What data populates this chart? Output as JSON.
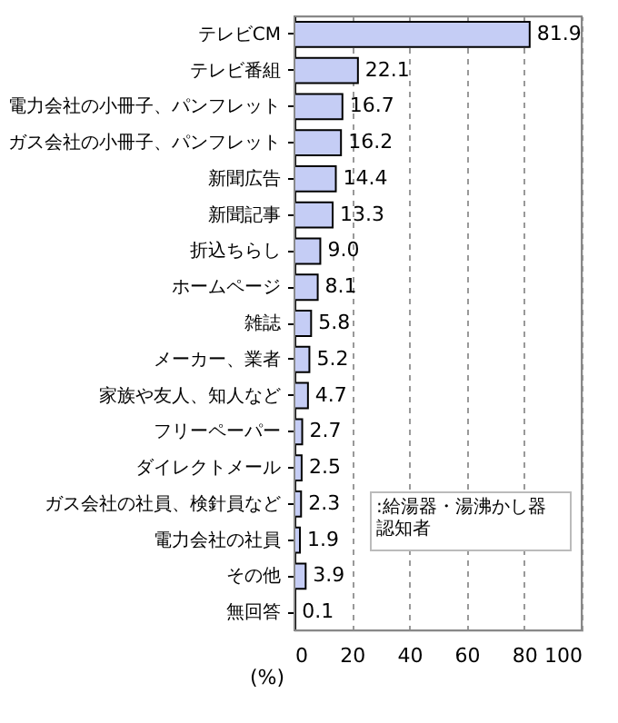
{
  "chart_data": {
    "type": "bar",
    "orientation": "horizontal",
    "xlabel": "(%)",
    "categories": [
      "テレビCM",
      "テレビ番組",
      "電力会社の小冊子、パンフレット",
      "ガス会社の小冊子、パンフレット",
      "新聞広告",
      "新聞記事",
      "折込ちらし",
      "ホームページ",
      "雑誌",
      "メーカー、業者",
      "家族や友人、知人など",
      "フリーペーパー",
      "ダイレクトメール",
      "ガス会社の社員、検針員など",
      "電力会社の社員",
      "その他",
      "無回答"
    ],
    "values": [
      81.9,
      22.1,
      16.7,
      16.2,
      14.4,
      13.3,
      9.0,
      8.1,
      5.8,
      5.2,
      4.7,
      2.7,
      2.5,
      2.3,
      1.9,
      3.9,
      0.1
    ],
    "value_labels": [
      "81.9",
      "22.1",
      "16.7",
      "16.2",
      "14.4",
      "13.3",
      "9.0",
      "8.1",
      "5.8",
      "5.2",
      "4.7",
      "2.7",
      "2.5",
      "2.3",
      "1.9",
      "3.9",
      "0.1"
    ],
    "color": "#c5cdf5",
    "xlim": [
      0,
      100
    ],
    "xticks": [
      0,
      20,
      40,
      60,
      80,
      100
    ],
    "grid": "x",
    "annotations": [
      ":給湯器・湯沸かし器認知者"
    ]
  }
}
